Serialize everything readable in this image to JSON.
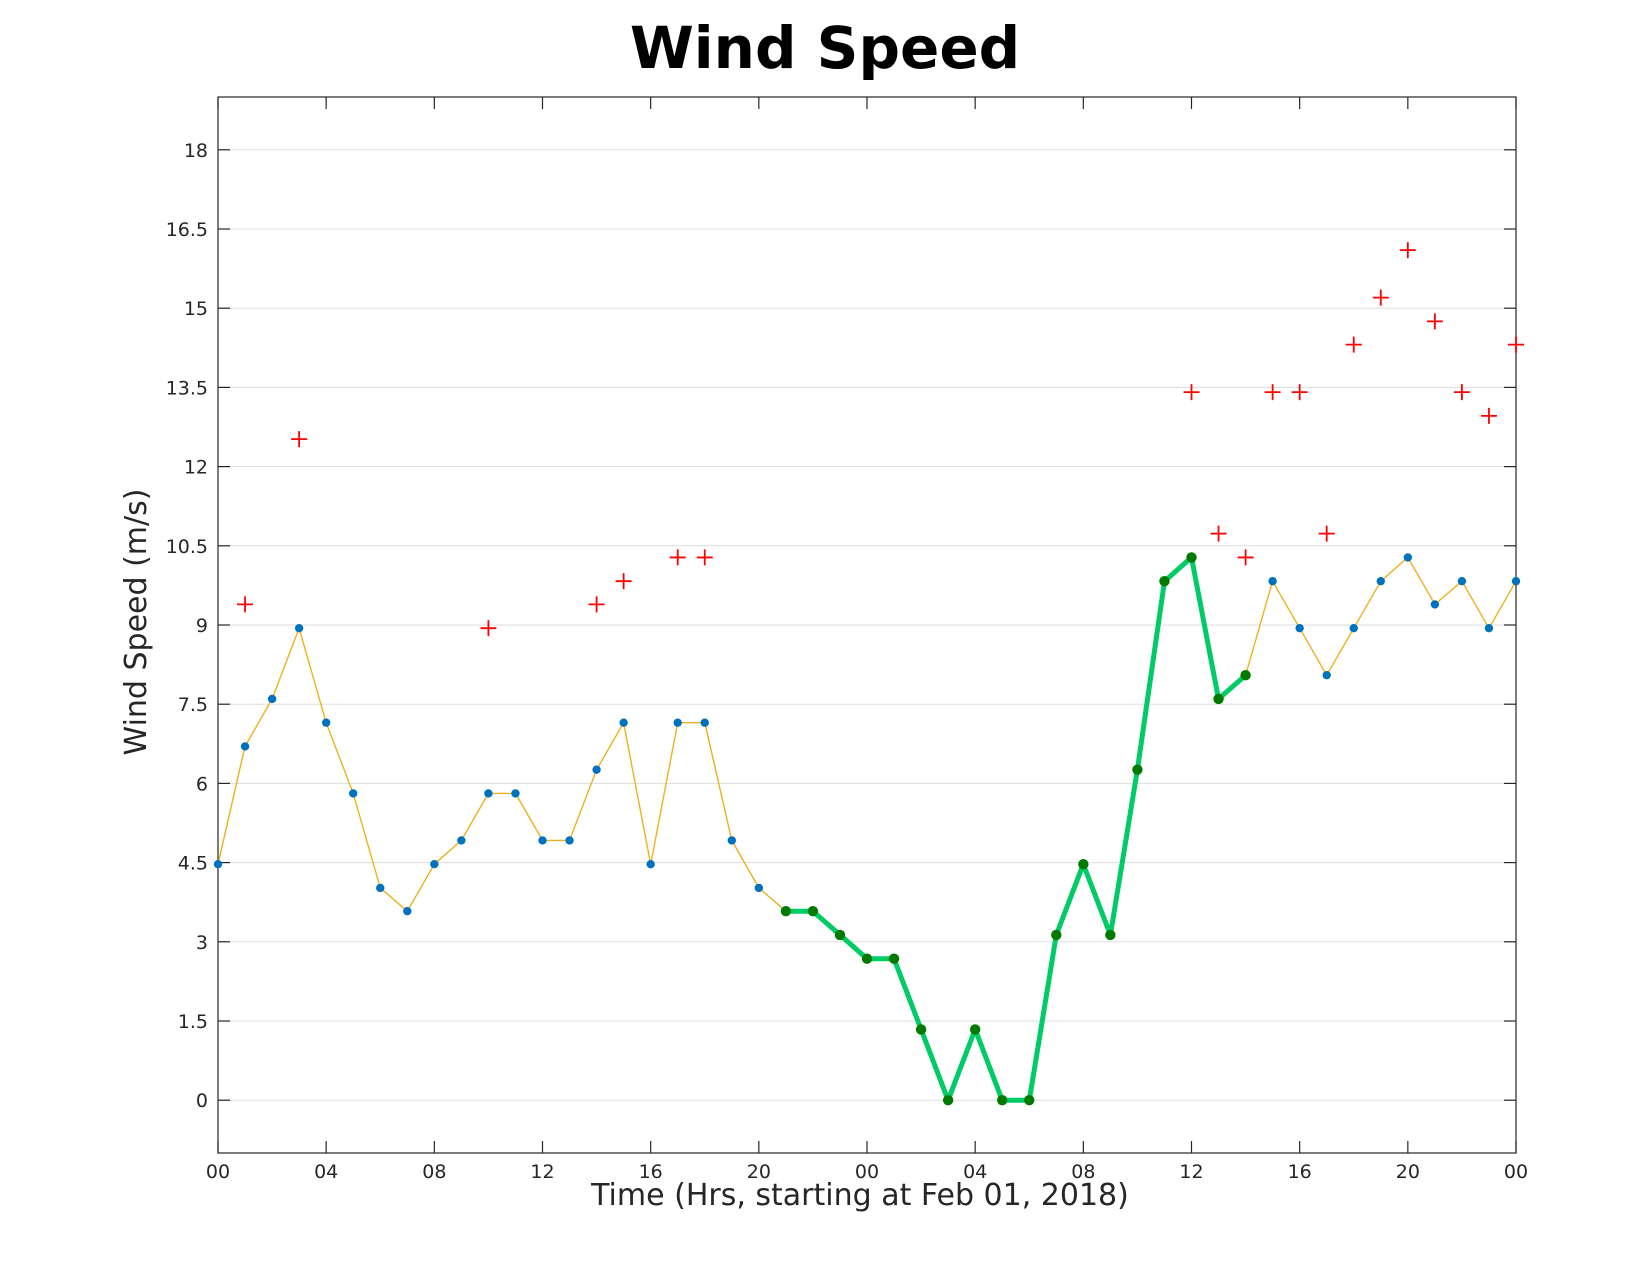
{
  "chart_data": {
    "type": "line",
    "title": "Wind Speed",
    "xlabel": "Time (Hrs, starting at Feb 01, 2018)",
    "ylabel": "Wind Speed (m/s)",
    "xlim": [
      0,
      48
    ],
    "ylim": [
      -1,
      19
    ],
    "yticks": [
      0,
      1.5,
      3,
      4.5,
      6,
      7.5,
      9,
      10.5,
      12,
      13.5,
      15,
      16.5,
      18
    ],
    "ytick_labels": [
      "0",
      "1.5",
      "3",
      "4.5",
      "6",
      "7.5",
      "9",
      "10.5",
      "12",
      "13.5",
      "15",
      "16.5",
      "18"
    ],
    "xticks": [
      0,
      4,
      8,
      12,
      16,
      20,
      24,
      28,
      32,
      36,
      40,
      44,
      48
    ],
    "xtick_labels": [
      "00",
      "04",
      "08",
      "12",
      "16",
      "20",
      "00",
      "04",
      "08",
      "12",
      "16",
      "20",
      "00"
    ],
    "grid": "horizontal",
    "colors": {
      "line": "#edb120",
      "marker": "#0072bd",
      "highlight_line": "#00cc66",
      "highlight_marker": "#007a00",
      "gust": "#ff0000",
      "grid": "#dddddd",
      "axes": "#262626"
    },
    "series": [
      {
        "x": [
          0,
          1,
          2,
          3,
          4,
          5,
          6,
          7,
          8,
          9,
          10,
          11,
          12,
          13,
          14,
          15,
          16,
          17,
          18,
          19,
          20,
          21,
          22,
          23,
          24,
          25,
          26,
          27,
          28,
          29,
          30,
          31,
          32,
          33,
          34,
          35,
          36,
          37,
          38,
          39,
          40,
          41,
          42,
          43,
          44,
          45,
          46,
          47,
          48
        ],
        "values": [
          4.47,
          6.7,
          7.6,
          8.94,
          7.15,
          5.81,
          4.02,
          3.58,
          4.47,
          4.92,
          5.81,
          5.81,
          4.92,
          4.92,
          6.26,
          7.15,
          4.47,
          7.15,
          7.15,
          4.92,
          4.02,
          3.58,
          3.58,
          3.13,
          2.68,
          2.68,
          1.34,
          0,
          1.34,
          0,
          0,
          3.13,
          4.47,
          3.13,
          6.26,
          9.83,
          10.28,
          7.6,
          8.05,
          9.83,
          8.94,
          8.05,
          8.94,
          9.83,
          10.28,
          9.39,
          9.83,
          8.94,
          9.83
        ],
        "style": "thin line with round markers"
      },
      {
        "x": [
          21,
          22,
          23,
          24,
          25,
          26,
          27,
          28,
          29,
          30,
          31,
          32,
          33,
          34,
          35,
          36,
          37,
          38
        ],
        "values": [
          3.58,
          3.58,
          3.13,
          2.68,
          2.68,
          1.34,
          0,
          1.34,
          0,
          0,
          3.13,
          4.47,
          3.13,
          6.26,
          9.83,
          10.28,
          7.6,
          8.05
        ],
        "style": "thick highlighted segment"
      },
      {
        "x": [
          1,
          3,
          10,
          14,
          15,
          17,
          18,
          36,
          37,
          38,
          39,
          40,
          41,
          42,
          43,
          44,
          45,
          46,
          47,
          48
        ],
        "values": [
          9.39,
          12.52,
          8.94,
          9.39,
          9.83,
          10.28,
          10.28,
          13.41,
          10.73,
          10.28,
          13.41,
          13.41,
          10.73,
          14.31,
          15.2,
          16.1,
          14.75,
          13.41,
          12.96,
          14.31
        ],
        "style": "plus markers"
      }
    ]
  }
}
